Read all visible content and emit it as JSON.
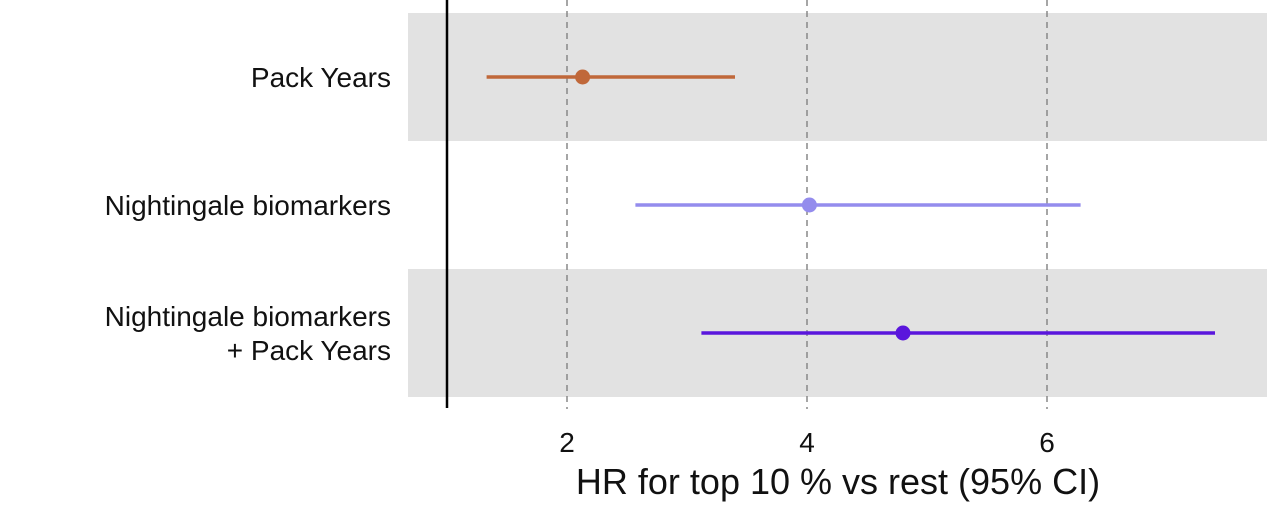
{
  "chart_data": {
    "type": "forest",
    "xlabel": "HR for top 10 % vs rest (95% CI)",
    "xlim": [
      0.7,
      7.8
    ],
    "reference_line": 1,
    "xticks": [
      2,
      4,
      6
    ],
    "xtick_labels": [
      "2",
      "4",
      "6"
    ],
    "grid": "vertical dashed at ticks",
    "rows": [
      {
        "label_lines": [
          "Pack Years"
        ],
        "hr": 2.13,
        "ci_low": 1.33,
        "ci_high": 3.4,
        "color": "#c0683a",
        "band": true
      },
      {
        "label_lines": [
          "Nightingale biomarkers"
        ],
        "hr": 4.02,
        "ci_low": 2.57,
        "ci_high": 6.28,
        "color": "#948ced",
        "band": false
      },
      {
        "label_lines": [
          "Nightingale biomarkers",
          "+ Pack Years"
        ],
        "hr": 4.8,
        "ci_low": 3.12,
        "ci_high": 7.4,
        "color": "#5a16dc",
        "band": true
      }
    ]
  }
}
